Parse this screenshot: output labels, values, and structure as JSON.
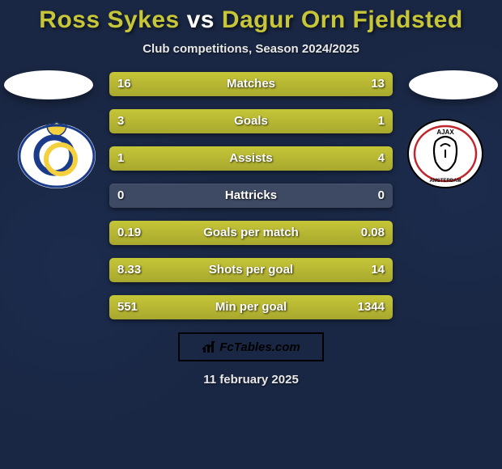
{
  "title": {
    "player1": "Ross Sykes",
    "vs": "vs",
    "player2": "Dagur Orn Fjeldsted",
    "player1_color": "#c6c638",
    "vs_color": "#ffffff",
    "player2_color": "#c6c638"
  },
  "subtitle": "Club competitions, Season 2024/2025",
  "bars": {
    "bar_bg": "#3e4a64",
    "fill_color": "#b8b832",
    "label_color": "#ffffff",
    "value_color": "#ffffff",
    "rows": [
      {
        "label": "Matches",
        "left": "16",
        "right": "13",
        "left_pct": 55,
        "right_pct": 45
      },
      {
        "label": "Goals",
        "left": "3",
        "right": "1",
        "left_pct": 75,
        "right_pct": 25
      },
      {
        "label": "Assists",
        "left": "1",
        "right": "4",
        "left_pct": 20,
        "right_pct": 80
      },
      {
        "label": "Hattricks",
        "left": "0",
        "right": "0",
        "left_pct": 0,
        "right_pct": 0
      },
      {
        "label": "Goals per match",
        "left": "0.19",
        "right": "0.08",
        "left_pct": 70,
        "right_pct": 30
      },
      {
        "label": "Shots per goal",
        "left": "8.33",
        "right": "14",
        "left_pct": 37,
        "right_pct": 63
      },
      {
        "label": "Min per goal",
        "left": "551",
        "right": "1344",
        "left_pct": 29,
        "right_pct": 71
      }
    ]
  },
  "footer": {
    "brand_prefix": "Fc",
    "brand_suffix": "Tables.com"
  },
  "date": "11 february 2025",
  "clubs": {
    "left_name": "union-sg-logo",
    "right_name": "ajax-logo"
  },
  "background_color": "#1a2744"
}
